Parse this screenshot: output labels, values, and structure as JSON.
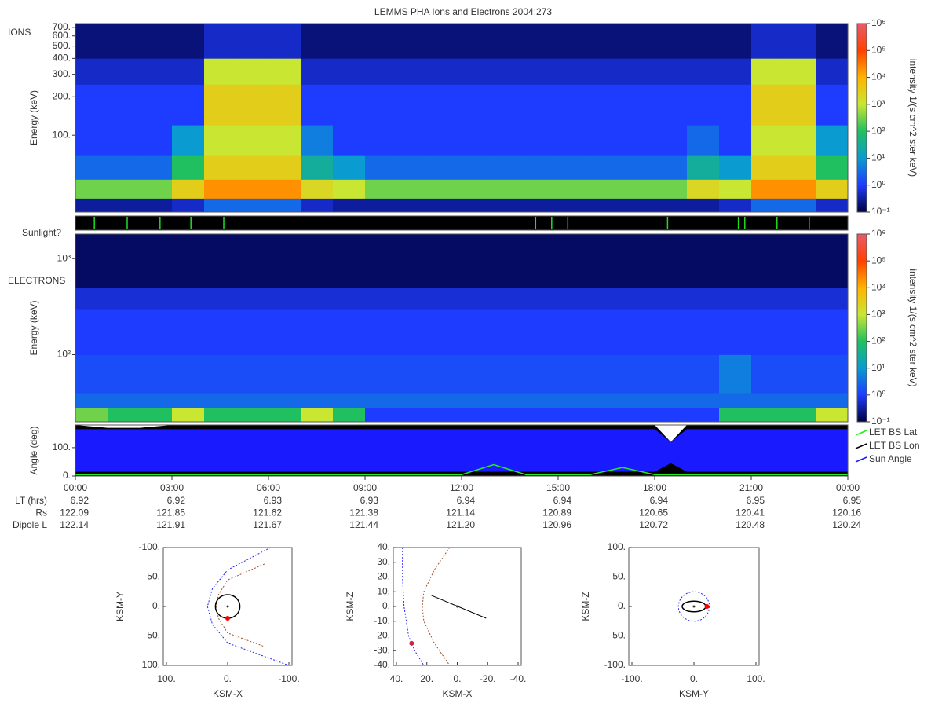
{
  "title": "LEMMS PHA Ions and Electrons  2004:273",
  "chart_data": [
    {
      "type": "heatmap",
      "label": "IONS",
      "ylabel": "Energy (keV)",
      "colorbar_label": "intensity 1/(s cm^2 ster keV)",
      "log_y": true,
      "xlim": [
        0,
        24
      ],
      "ylim": [
        25,
        750
      ],
      "yticks": [
        {
          "value": 100,
          "label": "100."
        },
        {
          "value": 200,
          "label": "200."
        },
        {
          "value": 300,
          "label": "300."
        },
        {
          "value": 400,
          "label": "400."
        },
        {
          "value": 500,
          "label": "500."
        },
        {
          "value": 600,
          "label": "600."
        },
        {
          "value": 700,
          "label": "700."
        }
      ],
      "x_bins": [
        0,
        1,
        2,
        3,
        4,
        5,
        6,
        7,
        8,
        9,
        10,
        11,
        12,
        13,
        14,
        15,
        16,
        17,
        18,
        19,
        20,
        21,
        22,
        23,
        24
      ],
      "y_bins": [
        25,
        32,
        45,
        70,
        120,
        250,
        400,
        750
      ],
      "z": [
        [
          0.3,
          0.3,
          0.3,
          0.5,
          3,
          3,
          3,
          0.5,
          0.3,
          0.3,
          0.3,
          0.3,
          0.3,
          0.3,
          0.3,
          0.3,
          0.3,
          0.3,
          0.3,
          0.3,
          0.5,
          3,
          3,
          0.5
        ],
        [
          300,
          300,
          300,
          3000,
          20000,
          20000,
          20000,
          2000,
          1000,
          300,
          300,
          300,
          300,
          300,
          300,
          300,
          300,
          300,
          300,
          2000,
          1000,
          20000,
          20000,
          3000
        ],
        [
          3,
          3,
          3,
          100,
          3000,
          3000,
          3000,
          30,
          10,
          3,
          3,
          3,
          3,
          3,
          3,
          3,
          3,
          3,
          3,
          30,
          10,
          3000,
          3000,
          100
        ],
        [
          1,
          1,
          1,
          10,
          1000,
          1000,
          1000,
          5,
          1,
          1,
          1,
          1,
          1,
          1,
          1,
          1,
          1,
          1,
          1,
          3,
          1,
          1000,
          1000,
          10
        ],
        [
          1,
          1,
          1,
          1,
          3000,
          3000,
          3000,
          1,
          1,
          1,
          1,
          1,
          1,
          1,
          1,
          1,
          1,
          1,
          1,
          1,
          1,
          3000,
          3000,
          1
        ],
        [
          0.5,
          0.5,
          0.5,
          0.5,
          1000,
          1000,
          1000,
          0.5,
          0.5,
          0.5,
          0.5,
          0.5,
          0.5,
          0.5,
          0.5,
          0.5,
          0.5,
          0.5,
          0.5,
          0.5,
          0.5,
          1000,
          1000,
          0.5
        ],
        [
          0.2,
          0.2,
          0.2,
          0.2,
          0.5,
          0.5,
          0.5,
          0.2,
          0.2,
          0.2,
          0.2,
          0.2,
          0.2,
          0.2,
          0.2,
          0.2,
          0.2,
          0.2,
          0.2,
          0.2,
          0.2,
          0.5,
          0.5,
          0.2
        ]
      ],
      "clim": [
        0.1,
        1000000
      ],
      "cticks": [
        {
          "value": 0.1,
          "label": "10⁻¹"
        },
        {
          "value": 1,
          "label": "10⁰"
        },
        {
          "value": 10,
          "label": "10¹"
        },
        {
          "value": 100,
          "label": "10²"
        },
        {
          "value": 1000,
          "label": "10³"
        },
        {
          "value": 10000,
          "label": "10⁴"
        },
        {
          "value": 100000,
          "label": "10⁵"
        },
        {
          "value": 1000000,
          "label": "10⁶"
        }
      ]
    },
    {
      "type": "events",
      "label": "Sunlight?",
      "xlim": [
        0,
        24
      ],
      "color": "#22dd22",
      "x": [
        0.59,
        1.61,
        2.63,
        3.59,
        4.61,
        14.3,
        14.8,
        15.3,
        18.4,
        20.6,
        20.8,
        21.8,
        22.8
      ]
    },
    {
      "type": "heatmap",
      "label": "ELECTRONS",
      "ylabel": "Energy (keV)",
      "colorbar_label": "intensity 1/(s cm^2 ster keV)",
      "log_y": true,
      "xlim": [
        0,
        24
      ],
      "ylim": [
        20,
        1800
      ],
      "yticks": [
        {
          "value": 100,
          "label": "10²"
        },
        {
          "value": 1000,
          "label": "10³"
        }
      ],
      "x_bins": [
        0,
        1,
        2,
        3,
        4,
        5,
        6,
        7,
        8,
        9,
        10,
        11,
        12,
        13,
        14,
        15,
        16,
        17,
        18,
        19,
        20,
        21,
        22,
        23,
        24
      ],
      "y_bins": [
        20,
        28,
        40,
        100,
        300,
        500,
        1800
      ],
      "z": [
        [
          300,
          100,
          100,
          1000,
          100,
          100,
          100,
          1000,
          100,
          1,
          1,
          1,
          1,
          1,
          1,
          1,
          1,
          1,
          1,
          1,
          100,
          100,
          100,
          1000
        ],
        [
          3,
          3,
          3,
          3,
          3,
          3,
          3,
          3,
          3,
          3,
          3,
          3,
          3,
          3,
          3,
          3,
          3,
          3,
          3,
          3,
          3,
          3,
          3,
          3
        ],
        [
          1.5,
          1.5,
          1.5,
          1.5,
          1.5,
          1.5,
          1.5,
          1.5,
          1.5,
          1.5,
          1.5,
          1.5,
          1.5,
          1.5,
          1.5,
          1.5,
          1.5,
          1.5,
          1.5,
          1.5,
          5,
          1.5,
          1.5,
          1.5
        ],
        [
          1,
          1,
          1,
          1,
          1,
          1,
          1,
          1,
          1,
          1,
          1,
          1,
          1,
          1,
          1,
          1,
          1,
          1,
          1,
          1,
          1,
          1,
          1,
          1
        ],
        [
          0.6,
          0.6,
          0.6,
          0.6,
          0.6,
          0.6,
          0.6,
          0.6,
          0.6,
          0.6,
          0.6,
          0.6,
          0.6,
          0.6,
          0.6,
          0.6,
          0.6,
          0.6,
          0.6,
          0.6,
          0.6,
          0.6,
          0.6,
          0.6
        ],
        [
          0.15,
          0.15,
          0.15,
          0.15,
          0.15,
          0.15,
          0.15,
          0.15,
          0.15,
          0.15,
          0.15,
          0.15,
          0.15,
          0.15,
          0.15,
          0.15,
          0.15,
          0.15,
          0.15,
          0.15,
          0.15,
          0.15,
          0.15,
          0.15
        ]
      ],
      "clim": [
        0.1,
        1000000
      ],
      "cticks": [
        {
          "value": 0.1,
          "label": "10⁻¹"
        },
        {
          "value": 1,
          "label": "10⁰"
        },
        {
          "value": 10,
          "label": "10¹"
        },
        {
          "value": 100,
          "label": "10²"
        },
        {
          "value": 1000,
          "label": "10³"
        },
        {
          "value": 10000,
          "label": "10⁴"
        },
        {
          "value": 100000,
          "label": "10⁵"
        },
        {
          "value": 1000000,
          "label": "10⁶"
        }
      ]
    },
    {
      "type": "band",
      "ylabel": "Angle (deg)",
      "xlim": [
        0,
        24
      ],
      "ylim": [
        0,
        180
      ],
      "yticks": [
        {
          "value": 0,
          "label": "0."
        },
        {
          "value": 100,
          "label": "100."
        }
      ],
      "xticks": [
        {
          "value": 0,
          "label": "00:00"
        },
        {
          "value": 3,
          "label": "03:00"
        },
        {
          "value": 6,
          "label": "06:00"
        },
        {
          "value": 9,
          "label": "09:00"
        },
        {
          "value": 12,
          "label": "12:00"
        },
        {
          "value": 15,
          "label": "15:00"
        },
        {
          "value": 18,
          "label": "18:00"
        },
        {
          "value": 21,
          "label": "21:00"
        },
        {
          "value": 24,
          "label": "00:00"
        }
      ],
      "x": [
        0,
        1,
        2,
        3,
        4,
        5,
        6,
        7,
        8,
        9,
        10,
        11,
        12,
        13,
        14,
        15,
        16,
        17,
        18,
        18.5,
        19,
        20,
        21,
        22,
        23,
        24
      ],
      "series": [
        {
          "name": "LET BS Lat",
          "color": "#22ee22",
          "values": [
            5,
            5,
            5,
            5,
            5,
            5,
            5,
            5,
            5,
            5,
            5,
            5,
            5,
            40,
            5,
            5,
            5,
            30,
            5,
            5,
            5,
            5,
            5,
            5,
            5,
            5
          ]
        },
        {
          "name": "LET BS Lon",
          "color": "#000000",
          "values": [
            180,
            170,
            170,
            180,
            180,
            180,
            180,
            180,
            180,
            180,
            180,
            180,
            180,
            180,
            180,
            180,
            180,
            180,
            180,
            120,
            180,
            180,
            180,
            180,
            180,
            180
          ],
          "low": [
            0,
            0,
            0,
            0,
            0,
            0,
            0,
            0,
            0,
            0,
            0,
            0,
            0,
            0,
            0,
            0,
            0,
            0,
            0,
            0,
            0,
            0,
            0,
            0,
            0,
            0
          ]
        },
        {
          "name": "Sun Angle",
          "color": "#1a1aff",
          "values": [
            165,
            165,
            165,
            165,
            165,
            165,
            165,
            165,
            165,
            165,
            165,
            165,
            165,
            165,
            165,
            165,
            165,
            165,
            165,
            120,
            165,
            165,
            165,
            165,
            165,
            165
          ],
          "low": [
            15,
            15,
            15,
            15,
            15,
            15,
            15,
            15,
            15,
            15,
            15,
            15,
            15,
            15,
            15,
            15,
            15,
            15,
            15,
            45,
            15,
            15,
            15,
            15,
            15,
            15
          ]
        }
      ],
      "table": [
        {
          "label": "LT (hrs)",
          "values": [
            "6.92",
            "6.92",
            "6.93",
            "6.93",
            "6.94",
            "6.94",
            "6.94",
            "6.95",
            "6.95"
          ]
        },
        {
          "label": "Rs",
          "values": [
            "122.09",
            "121.85",
            "121.62",
            "121.38",
            "121.14",
            "120.89",
            "120.65",
            "120.41",
            "120.16"
          ]
        },
        {
          "label": "Dipole L",
          "values": [
            "122.14",
            "121.91",
            "121.67",
            "121.44",
            "121.20",
            "120.96",
            "120.72",
            "120.48",
            "120.24"
          ]
        }
      ]
    },
    {
      "type": "orbit",
      "xlabel": "KSM-X",
      "ylabel": "KSM-Y",
      "xlim": [
        100,
        -100
      ],
      "ylim": [
        100,
        -100
      ],
      "xticks": [
        {
          "value": 100,
          "label": "100."
        },
        {
          "value": 0,
          "label": "0."
        },
        {
          "value": -100,
          "label": "-100."
        }
      ],
      "yticks": [
        {
          "value": -100,
          "label": "-100."
        },
        {
          "value": -50,
          "label": "-50."
        },
        {
          "value": 0,
          "label": "0."
        },
        {
          "value": 50,
          "label": "50."
        },
        {
          "value": 100,
          "label": "100."
        }
      ],
      "series": [
        {
          "color": "#2222ff",
          "dashed": true,
          "x": [
            -70,
            0,
            25,
            33,
            25,
            0,
            -100
          ],
          "values": [
            -100,
            -62,
            -30,
            0,
            30,
            62,
            100
          ]
        },
        {
          "color": "#a0522d",
          "dashed": true,
          "x": [
            -60,
            0,
            15,
            19,
            15,
            0,
            -60
          ],
          "values": [
            -72,
            -45,
            -20,
            0,
            20,
            45,
            68
          ]
        }
      ],
      "ellipses": [
        {
          "color": "#000000",
          "rx": 20,
          "ry": 20
        }
      ],
      "planet": {
        "x": 0,
        "y": 0
      },
      "spacecraft": {
        "color": "#ff0000",
        "x": 0,
        "y": 20
      }
    },
    {
      "type": "orbit",
      "xlabel": "KSM-X",
      "ylabel": "KSM-Z",
      "xlim": [
        40,
        -40
      ],
      "ylim": [
        -40,
        40
      ],
      "xticks": [
        {
          "value": 40,
          "label": "40."
        },
        {
          "value": 20,
          "label": "20."
        },
        {
          "value": 0,
          "label": "0."
        },
        {
          "value": -20,
          "label": "-20."
        },
        {
          "value": -40,
          "label": "-40."
        }
      ],
      "yticks": [
        {
          "value": 40,
          "label": "40."
        },
        {
          "value": 30,
          "label": "30."
        },
        {
          "value": 20,
          "label": "20."
        },
        {
          "value": 10,
          "label": "10."
        },
        {
          "value": 0,
          "label": "0."
        },
        {
          "value": -10,
          "label": "-10."
        },
        {
          "value": -20,
          "label": "-20."
        },
        {
          "value": -30,
          "label": "-30."
        },
        {
          "value": -40,
          "label": "-40."
        }
      ],
      "series": [
        {
          "color": "#2222ff",
          "dashed": true,
          "x": [
            36,
            36,
            35,
            32,
            28,
            22
          ],
          "values": [
            40,
            20,
            0,
            -20,
            -30,
            -40
          ]
        },
        {
          "color": "#a0522d",
          "dashed": true,
          "x": [
            5,
            15,
            22,
            23,
            22,
            15,
            5
          ],
          "values": [
            40,
            25,
            10,
            0,
            -10,
            -25,
            -40
          ]
        },
        {
          "color": "#000000",
          "x": [
            17,
            -19
          ],
          "values": [
            7.5,
            -8
          ]
        }
      ],
      "ellipses": [],
      "planet": {
        "x": 0,
        "y": 0
      },
      "spacecraft": {
        "color": "#cc2255",
        "x": 30,
        "y": -25
      }
    },
    {
      "type": "orbit",
      "xlabel": "KSM-Y",
      "ylabel": "KSM-Z",
      "xlim": [
        -100,
        100
      ],
      "ylim": [
        -100,
        100
      ],
      "xticks": [
        {
          "value": -100,
          "label": "-100."
        },
        {
          "value": 0,
          "label": "0."
        },
        {
          "value": 100,
          "label": "100."
        }
      ],
      "yticks": [
        {
          "value": 100,
          "label": "100."
        },
        {
          "value": 50,
          "label": "50."
        },
        {
          "value": 0,
          "label": "0."
        },
        {
          "value": -50,
          "label": "-50."
        },
        {
          "value": -100,
          "label": "-100."
        }
      ],
      "series": [],
      "ellipses": [
        {
          "color": "#2222ff",
          "rx": 25,
          "ry": 25,
          "dashed": true
        },
        {
          "color": "#000000",
          "rx": 19,
          "ry": 9
        }
      ],
      "planet": {
        "x": 0,
        "y": 0
      },
      "spacecraft": {
        "color": "#ff0000",
        "x": 21,
        "y": 0
      }
    }
  ]
}
